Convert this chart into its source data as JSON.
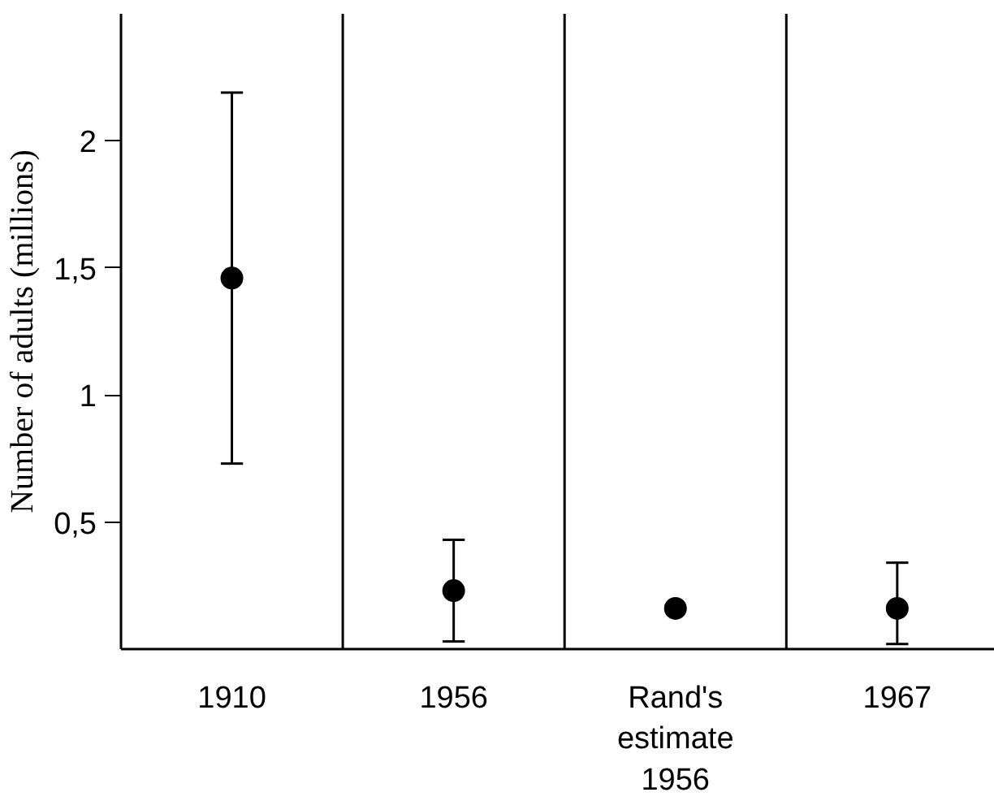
{
  "chart_data": {
    "type": "scatter",
    "ylabel": "Number of adults (millions)",
    "categories": [
      "1910",
      "1956",
      "Rand's\nestimate\n1956",
      "1967"
    ],
    "values": [
      1.46,
      0.23,
      0.16,
      0.16
    ],
    "errors": [
      [
        0.73,
        2.19
      ],
      [
        0.03,
        0.43
      ],
      null,
      [
        0.02,
        0.34
      ]
    ],
    "color": "#000000",
    "marker": "circle",
    "grid": false,
    "ylim": [
      0,
      2.5
    ],
    "yticks": [
      {
        "value": 0.5,
        "label": "0,5"
      },
      1,
      {
        "value": 1.5,
        "label": "1,5"
      },
      2
    ]
  }
}
